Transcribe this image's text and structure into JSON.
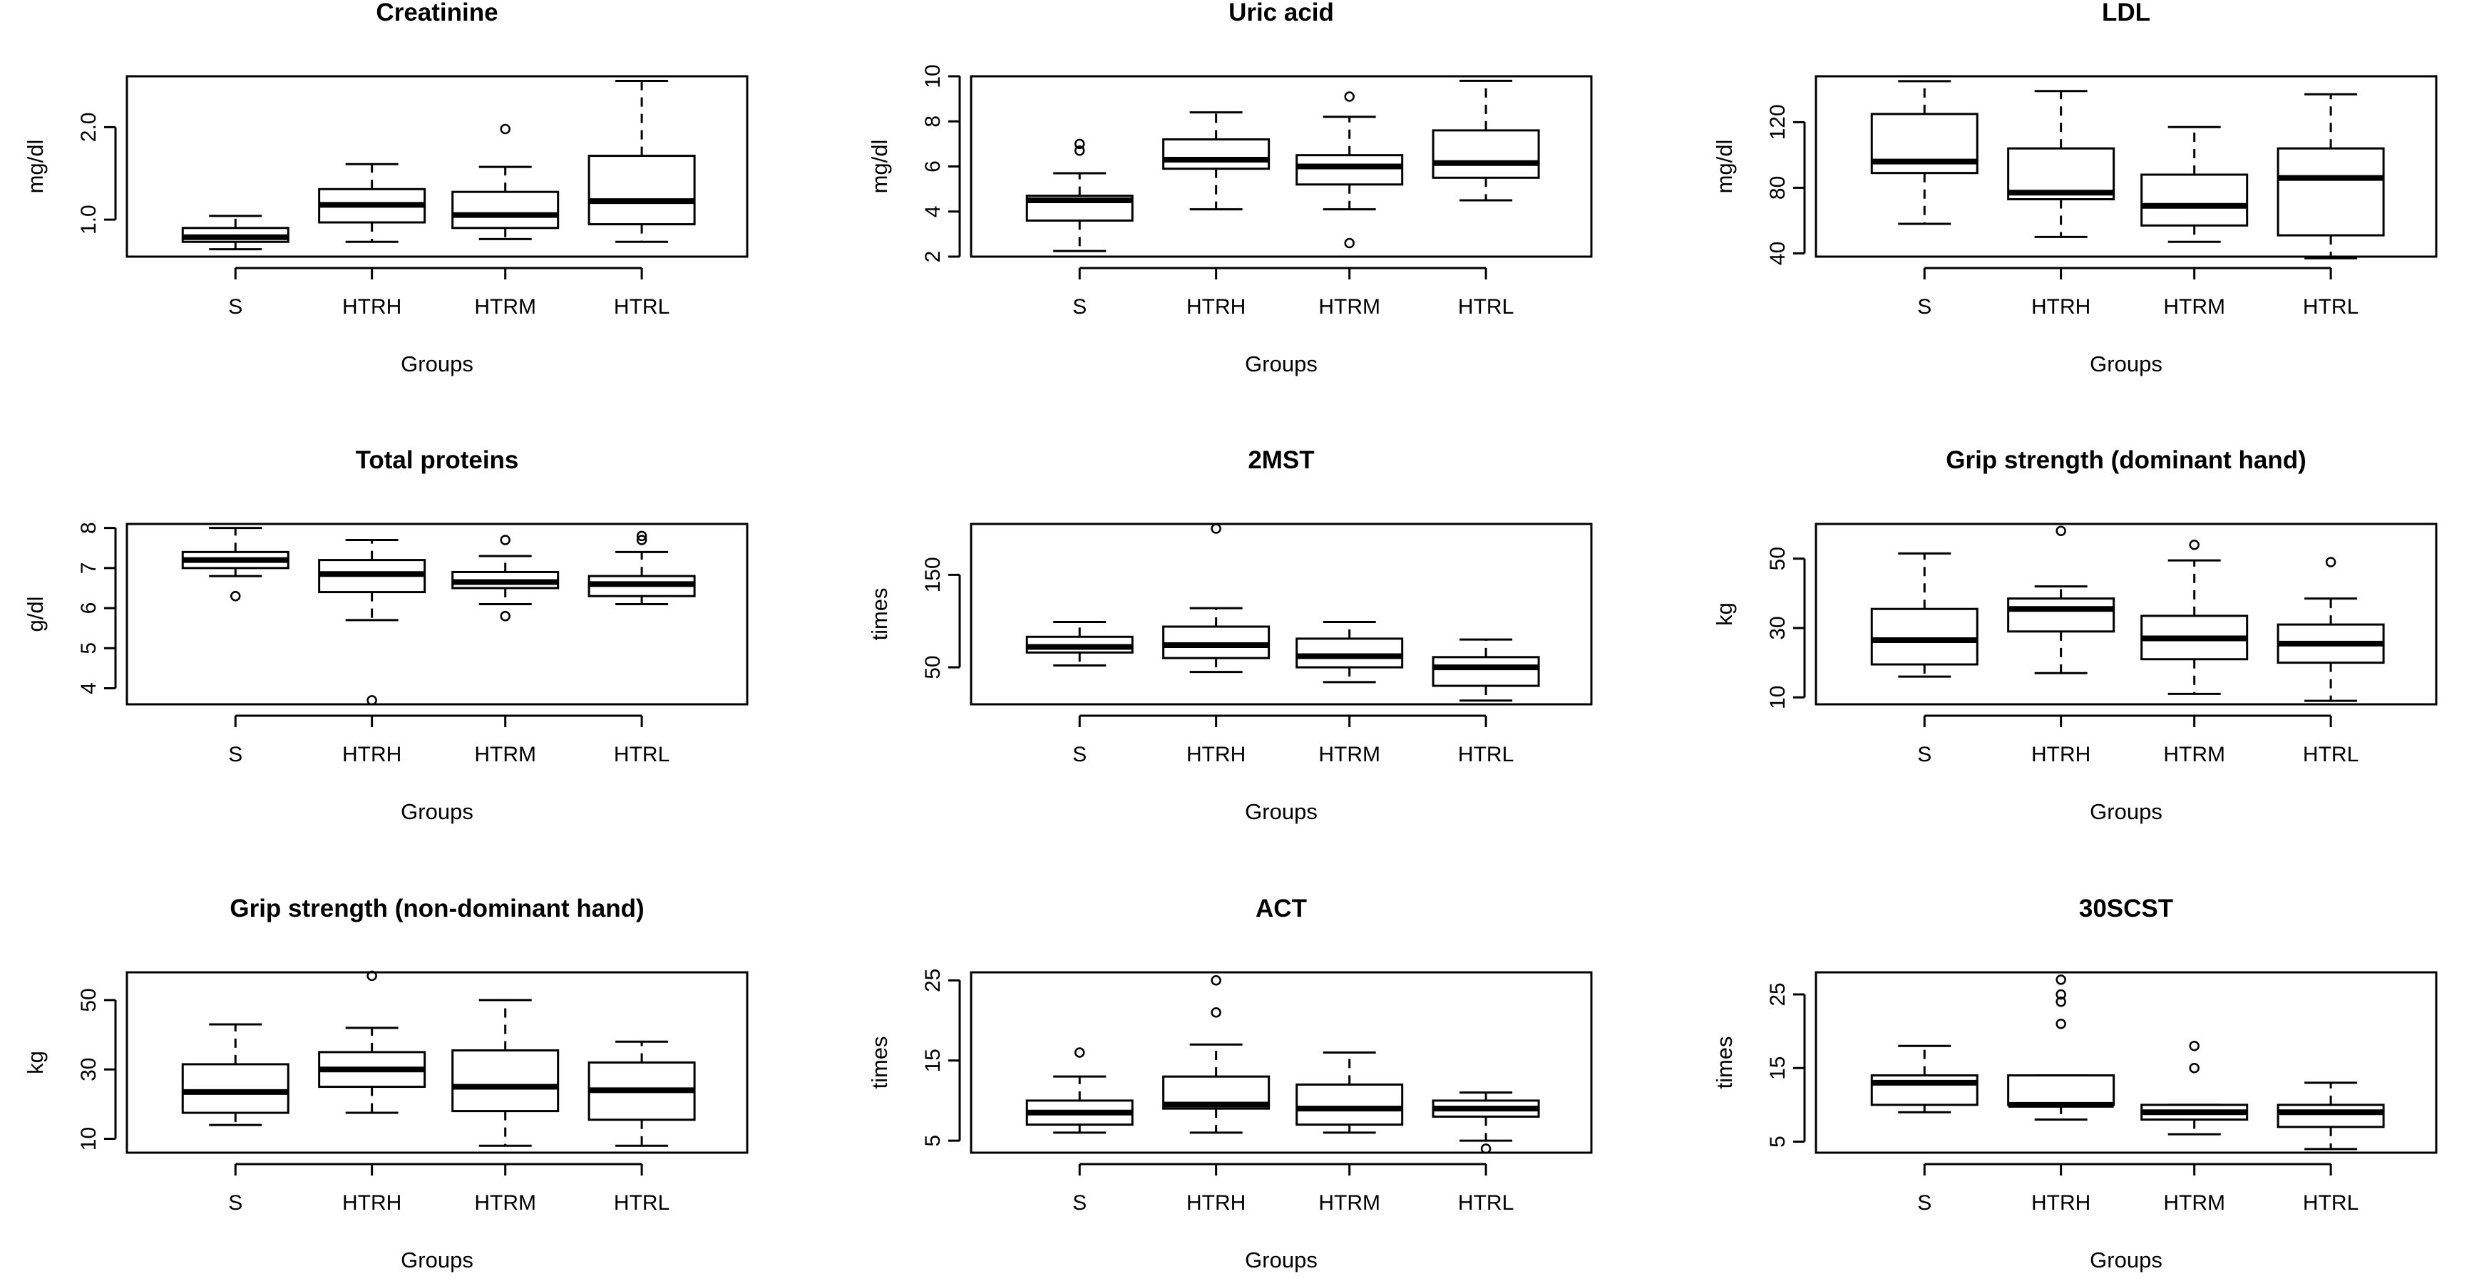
{
  "figure": {
    "x_axis_label": "Groups"
  },
  "chart_data": [
    {
      "type": "boxplot",
      "title": "Creatinine",
      "xlabel": "Groups",
      "ylabel": "mg/dl",
      "categories": [
        "S",
        "HTRH",
        "HTRM",
        "HTRL"
      ],
      "ylim": [
        0.6,
        2.55
      ],
      "yticks": [
        1.0,
        2.0
      ],
      "ytick_labels": [
        "1.0",
        "2.0"
      ],
      "boxes": [
        {
          "whisker_low": 0.68,
          "q1": 0.76,
          "median": 0.81,
          "q3": 0.91,
          "whisker_high": 1.04,
          "outliers": []
        },
        {
          "whisker_low": 0.76,
          "q1": 0.97,
          "median": 1.16,
          "q3": 1.33,
          "whisker_high": 1.6,
          "outliers": []
        },
        {
          "whisker_low": 0.79,
          "q1": 0.91,
          "median": 1.05,
          "q3": 1.3,
          "whisker_high": 1.57,
          "outliers": [
            1.98
          ]
        },
        {
          "whisker_low": 0.76,
          "q1": 0.95,
          "median": 1.2,
          "q3": 1.69,
          "whisker_high": 2.5,
          "outliers": []
        }
      ]
    },
    {
      "type": "boxplot",
      "title": "Uric acid",
      "xlabel": "Groups",
      "ylabel": "mg/dl",
      "categories": [
        "S",
        "HTRH",
        "HTRM",
        "HTRL"
      ],
      "ylim": [
        2,
        10
      ],
      "yticks": [
        2,
        4,
        6,
        8,
        10
      ],
      "ytick_labels": [
        "2",
        "4",
        "6",
        "8",
        "10"
      ],
      "boxes": [
        {
          "whisker_low": 2.25,
          "q1": 3.6,
          "median": 4.5,
          "q3": 4.7,
          "whisker_high": 5.7,
          "outliers": [
            6.7,
            7.0
          ]
        },
        {
          "whisker_low": 4.1,
          "q1": 5.9,
          "median": 6.3,
          "q3": 7.2,
          "whisker_high": 8.4,
          "outliers": []
        },
        {
          "whisker_low": 4.1,
          "q1": 5.2,
          "median": 6.0,
          "q3": 6.5,
          "whisker_high": 8.2,
          "outliers": [
            2.6,
            9.1
          ]
        },
        {
          "whisker_low": 4.5,
          "q1": 5.5,
          "median": 6.15,
          "q3": 7.6,
          "whisker_high": 9.8,
          "outliers": []
        }
      ]
    },
    {
      "type": "boxplot",
      "title": "LDL",
      "xlabel": "Groups",
      "ylabel": "mg/dl",
      "categories": [
        "S",
        "HTRH",
        "HTRM",
        "HTRL"
      ],
      "ylim": [
        38,
        148
      ],
      "yticks": [
        40,
        80,
        120
      ],
      "ytick_labels": [
        "40",
        "80",
        "120"
      ],
      "boxes": [
        {
          "whisker_low": 58,
          "q1": 89,
          "median": 96,
          "q3": 125,
          "whisker_high": 145,
          "outliers": []
        },
        {
          "whisker_low": 50,
          "q1": 73,
          "median": 77,
          "q3": 104,
          "whisker_high": 139,
          "outliers": []
        },
        {
          "whisker_low": 47,
          "q1": 57,
          "median": 69,
          "q3": 88,
          "whisker_high": 117,
          "outliers": []
        },
        {
          "whisker_low": 37,
          "q1": 51,
          "median": 86,
          "q3": 104,
          "whisker_high": 137,
          "outliers": []
        }
      ]
    },
    {
      "type": "boxplot",
      "title": "Total proteins",
      "xlabel": "Groups",
      "ylabel": "g/dl",
      "categories": [
        "S",
        "HTRH",
        "HTRM",
        "HTRL"
      ],
      "ylim": [
        3.6,
        8.1
      ],
      "yticks": [
        4,
        5,
        6,
        7,
        8
      ],
      "ytick_labels": [
        "4",
        "5",
        "6",
        "7",
        "8"
      ],
      "boxes": [
        {
          "whisker_low": 6.8,
          "q1": 7.0,
          "median": 7.2,
          "q3": 7.4,
          "whisker_high": 8.0,
          "outliers": [
            6.3
          ]
        },
        {
          "whisker_low": 5.7,
          "q1": 6.4,
          "median": 6.85,
          "q3": 7.2,
          "whisker_high": 7.7,
          "outliers": [
            3.7
          ]
        },
        {
          "whisker_low": 6.1,
          "q1": 6.5,
          "median": 6.65,
          "q3": 6.9,
          "whisker_high": 7.3,
          "outliers": [
            5.8,
            7.7
          ]
        },
        {
          "whisker_low": 6.1,
          "q1": 6.3,
          "median": 6.6,
          "q3": 6.8,
          "whisker_high": 7.4,
          "outliers": [
            7.7,
            7.8
          ]
        }
      ]
    },
    {
      "type": "boxplot",
      "title": "2MST",
      "xlabel": "Groups",
      "ylabel": "times",
      "categories": [
        "S",
        "HTRH",
        "HTRM",
        "HTRL"
      ],
      "ylim": [
        10,
        205
      ],
      "yticks": [
        50,
        150
      ],
      "ytick_labels": [
        "50",
        "150"
      ],
      "boxes": [
        {
          "whisker_low": 52,
          "q1": 66,
          "median": 72,
          "q3": 83,
          "whisker_high": 99,
          "outliers": []
        },
        {
          "whisker_low": 45,
          "q1": 60,
          "median": 74,
          "q3": 94,
          "whisker_high": 114,
          "outliers": [
            200
          ]
        },
        {
          "whisker_low": 34,
          "q1": 50,
          "median": 62,
          "q3": 81,
          "whisker_high": 99,
          "outliers": []
        },
        {
          "whisker_low": 14,
          "q1": 30,
          "median": 50,
          "q3": 61,
          "whisker_high": 80,
          "outliers": []
        }
      ]
    },
    {
      "type": "boxplot",
      "title": "Grip strength (dominant hand)",
      "xlabel": "Groups",
      "ylabel": "kg",
      "categories": [
        "S",
        "HTRH",
        "HTRM",
        "HTRL"
      ],
      "ylim": [
        8,
        60
      ],
      "yticks": [
        10,
        30,
        50
      ],
      "ytick_labels": [
        "10",
        "30",
        "50"
      ],
      "boxes": [
        {
          "whisker_low": 16,
          "q1": 19.5,
          "median": 26.5,
          "q3": 35.5,
          "whisker_high": 51.5,
          "outliers": []
        },
        {
          "whisker_low": 17,
          "q1": 29,
          "median": 35.5,
          "q3": 38.5,
          "whisker_high": 42,
          "outliers": [
            58
          ]
        },
        {
          "whisker_low": 11,
          "q1": 21,
          "median": 27,
          "q3": 33.5,
          "whisker_high": 49.5,
          "outliers": [
            54
          ]
        },
        {
          "whisker_low": 9,
          "q1": 20,
          "median": 25.5,
          "q3": 31,
          "whisker_high": 38.5,
          "outliers": [
            49
          ]
        }
      ]
    },
    {
      "type": "boxplot",
      "title": "Grip strength (non-dominant hand)",
      "xlabel": "Groups",
      "ylabel": "kg",
      "categories": [
        "S",
        "HTRH",
        "HTRM",
        "HTRL"
      ],
      "ylim": [
        6,
        58
      ],
      "yticks": [
        10,
        30,
        50
      ],
      "ytick_labels": [
        "10",
        "30",
        "50"
      ],
      "boxes": [
        {
          "whisker_low": 14,
          "q1": 17.5,
          "median": 23.5,
          "q3": 31.5,
          "whisker_high": 43,
          "outliers": []
        },
        {
          "whisker_low": 17.5,
          "q1": 25,
          "median": 30,
          "q3": 35,
          "whisker_high": 42,
          "outliers": [
            57
          ]
        },
        {
          "whisker_low": 8,
          "q1": 18,
          "median": 25,
          "q3": 35.5,
          "whisker_high": 50,
          "outliers": []
        },
        {
          "whisker_low": 8,
          "q1": 15.5,
          "median": 24,
          "q3": 32,
          "whisker_high": 38,
          "outliers": []
        }
      ]
    },
    {
      "type": "boxplot",
      "title": "ACT",
      "xlabel": "Groups",
      "ylabel": "times",
      "categories": [
        "S",
        "HTRH",
        "HTRM",
        "HTRL"
      ],
      "ylim": [
        3.5,
        26
      ],
      "yticks": [
        5,
        15,
        25
      ],
      "ytick_labels": [
        "5",
        "15",
        "25"
      ],
      "boxes": [
        {
          "whisker_low": 6,
          "q1": 7,
          "median": 8.5,
          "q3": 10,
          "whisker_high": 13,
          "outliers": [
            16
          ]
        },
        {
          "whisker_low": 6,
          "q1": 9,
          "median": 9.5,
          "q3": 13,
          "whisker_high": 17,
          "outliers": [
            21,
            25
          ]
        },
        {
          "whisker_low": 6,
          "q1": 7,
          "median": 9,
          "q3": 12,
          "whisker_high": 16,
          "outliers": []
        },
        {
          "whisker_low": 5,
          "q1": 8,
          "median": 9,
          "q3": 10,
          "whisker_high": 11,
          "outliers": [
            4
          ]
        }
      ]
    },
    {
      "type": "boxplot",
      "title": "30SCST",
      "xlabel": "Groups",
      "ylabel": "times",
      "categories": [
        "S",
        "HTRH",
        "HTRM",
        "HTRL"
      ],
      "ylim": [
        3.5,
        28
      ],
      "yticks": [
        5,
        15,
        25
      ],
      "ytick_labels": [
        "5",
        "15",
        "25"
      ],
      "boxes": [
        {
          "whisker_low": 9,
          "q1": 10,
          "median": 13,
          "q3": 14,
          "whisker_high": 18,
          "outliers": []
        },
        {
          "whisker_low": 8,
          "q1": 10,
          "median": 10,
          "q3": 14,
          "whisker_high": 14,
          "outliers": [
            21,
            24,
            25,
            27
          ]
        },
        {
          "whisker_low": 6,
          "q1": 8,
          "median": 9,
          "q3": 10,
          "whisker_high": 10,
          "outliers": [
            15,
            18
          ]
        },
        {
          "whisker_low": 4,
          "q1": 7,
          "median": 9,
          "q3": 10,
          "whisker_high": 13,
          "outliers": []
        }
      ]
    }
  ]
}
